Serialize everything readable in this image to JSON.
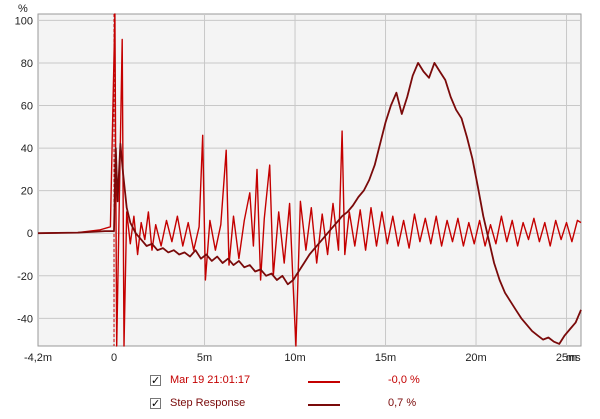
{
  "chart_data": {
    "type": "line",
    "xlabel": "",
    "ylabel": "%",
    "x_unit_label": "ms",
    "xlim": [
      -4.2,
      25.8
    ],
    "ylim": [
      -53,
      103
    ],
    "grid": true,
    "x_ticks": [
      {
        "value": -4.2,
        "label": "-4,2m"
      },
      {
        "value": 0,
        "label": "0"
      },
      {
        "value": 5,
        "label": "5m"
      },
      {
        "value": 10,
        "label": "10m"
      },
      {
        "value": 15,
        "label": "15m"
      },
      {
        "value": 20,
        "label": "20m"
      },
      {
        "value": 25,
        "label": "25m"
      }
    ],
    "y_ticks": [
      {
        "value": 100,
        "label": "100"
      },
      {
        "value": 80,
        "label": "80"
      },
      {
        "value": 60,
        "label": "60"
      },
      {
        "value": 40,
        "label": "40"
      },
      {
        "value": 20,
        "label": "20"
      },
      {
        "value": 0,
        "label": "0"
      },
      {
        "value": -20,
        "label": "-20"
      },
      {
        "value": -40,
        "label": "-40"
      }
    ],
    "marker_x": 0,
    "series": [
      {
        "name": "Mar 19 21:01:17",
        "legend_value": "-0,0 %",
        "color": "#c40000",
        "points": [
          [
            -4.2,
            0
          ],
          [
            -2.0,
            0.3
          ],
          [
            -0.8,
            1.5
          ],
          [
            -0.2,
            3
          ],
          [
            0.05,
            103
          ],
          [
            0.15,
            -53
          ],
          [
            0.3,
            20
          ],
          [
            0.45,
            91
          ],
          [
            0.55,
            -53
          ],
          [
            0.7,
            10
          ],
          [
            0.9,
            -5
          ],
          [
            1.1,
            8
          ],
          [
            1.3,
            -10
          ],
          [
            1.5,
            5
          ],
          [
            1.7,
            -3
          ],
          [
            1.9,
            10
          ],
          [
            2.1,
            -8
          ],
          [
            2.3,
            4
          ],
          [
            2.6,
            -6
          ],
          [
            2.9,
            6
          ],
          [
            3.2,
            -4
          ],
          [
            3.5,
            8
          ],
          [
            3.8,
            -6
          ],
          [
            4.1,
            5
          ],
          [
            4.4,
            -8
          ],
          [
            4.7,
            3
          ],
          [
            4.9,
            46
          ],
          [
            5.05,
            -22
          ],
          [
            5.3,
            6
          ],
          [
            5.6,
            -8
          ],
          [
            5.9,
            4
          ],
          [
            6.2,
            39
          ],
          [
            6.35,
            -15
          ],
          [
            6.6,
            8
          ],
          [
            6.9,
            -12
          ],
          [
            7.2,
            6
          ],
          [
            7.5,
            19
          ],
          [
            7.7,
            -6
          ],
          [
            7.9,
            30
          ],
          [
            8.1,
            -22
          ],
          [
            8.3,
            7
          ],
          [
            8.6,
            32
          ],
          [
            8.8,
            -20
          ],
          [
            9.1,
            10
          ],
          [
            9.4,
            -14
          ],
          [
            9.7,
            14
          ],
          [
            9.9,
            -25
          ],
          [
            10.05,
            -53
          ],
          [
            10.3,
            15
          ],
          [
            10.6,
            -8
          ],
          [
            10.9,
            12
          ],
          [
            11.2,
            -14
          ],
          [
            11.5,
            9
          ],
          [
            11.8,
            -10
          ],
          [
            12.1,
            14
          ],
          [
            12.4,
            -8
          ],
          [
            12.6,
            48
          ],
          [
            12.75,
            -10
          ],
          [
            13.0,
            10
          ],
          [
            13.3,
            -6
          ],
          [
            13.6,
            11
          ],
          [
            13.9,
            -8
          ],
          [
            14.2,
            12
          ],
          [
            14.5,
            -6
          ],
          [
            14.8,
            10
          ],
          [
            15.1,
            -5
          ],
          [
            15.4,
            8
          ],
          [
            15.7,
            -6
          ],
          [
            16.0,
            6
          ],
          [
            16.3,
            -7
          ],
          [
            16.6,
            9
          ],
          [
            16.9,
            -4
          ],
          [
            17.2,
            7
          ],
          [
            17.5,
            -5
          ],
          [
            17.8,
            8
          ],
          [
            18.1,
            -6
          ],
          [
            18.4,
            6
          ],
          [
            18.7,
            -4
          ],
          [
            19.0,
            7
          ],
          [
            19.3,
            -6
          ],
          [
            19.6,
            5
          ],
          [
            19.9,
            -5
          ],
          [
            20.2,
            6
          ],
          [
            20.5,
            -6
          ],
          [
            20.8,
            4
          ],
          [
            21.1,
            -5
          ],
          [
            21.4,
            8
          ],
          [
            21.7,
            -4
          ],
          [
            22.0,
            6
          ],
          [
            22.3,
            -6
          ],
          [
            22.6,
            5
          ],
          [
            22.9,
            -3
          ],
          [
            23.2,
            7
          ],
          [
            23.5,
            -4
          ],
          [
            23.8,
            5
          ],
          [
            24.1,
            -6
          ],
          [
            24.4,
            6
          ],
          [
            24.7,
            -3
          ],
          [
            25.0,
            5
          ],
          [
            25.3,
            -4
          ],
          [
            25.6,
            6
          ],
          [
            25.8,
            5
          ]
        ]
      },
      {
        "name": "Step Response",
        "legend_value": "0,7 %",
        "color": "#7a0a0a",
        "points": [
          [
            -4.2,
            0
          ],
          [
            -2.0,
            0.3
          ],
          [
            -0.5,
            1
          ],
          [
            0.0,
            1
          ],
          [
            0.1,
            40
          ],
          [
            0.2,
            15
          ],
          [
            0.35,
            42
          ],
          [
            0.5,
            28
          ],
          [
            0.7,
            12
          ],
          [
            0.9,
            5
          ],
          [
            1.2,
            0
          ],
          [
            1.5,
            -3
          ],
          [
            1.8,
            -6
          ],
          [
            2.1,
            -5
          ],
          [
            2.4,
            -8
          ],
          [
            2.7,
            -7
          ],
          [
            3.0,
            -9
          ],
          [
            3.3,
            -8
          ],
          [
            3.6,
            -10
          ],
          [
            3.9,
            -9
          ],
          [
            4.2,
            -11
          ],
          [
            4.5,
            -8
          ],
          [
            4.8,
            -12
          ],
          [
            5.1,
            -10
          ],
          [
            5.4,
            -13
          ],
          [
            5.7,
            -11
          ],
          [
            6.0,
            -14
          ],
          [
            6.3,
            -12
          ],
          [
            6.6,
            -15
          ],
          [
            6.9,
            -13
          ],
          [
            7.2,
            -16
          ],
          [
            7.5,
            -15
          ],
          [
            7.8,
            -18
          ],
          [
            8.1,
            -17
          ],
          [
            8.4,
            -20
          ],
          [
            8.7,
            -19
          ],
          [
            9.0,
            -22
          ],
          [
            9.3,
            -20
          ],
          [
            9.6,
            -24
          ],
          [
            9.9,
            -22
          ],
          [
            10.2,
            -18
          ],
          [
            10.5,
            -14
          ],
          [
            10.8,
            -10
          ],
          [
            11.1,
            -7
          ],
          [
            11.4,
            -4
          ],
          [
            11.7,
            -1
          ],
          [
            12.0,
            2
          ],
          [
            12.3,
            5
          ],
          [
            12.6,
            8
          ],
          [
            12.9,
            10
          ],
          [
            13.2,
            13
          ],
          [
            13.5,
            17
          ],
          [
            13.8,
            20
          ],
          [
            14.1,
            25
          ],
          [
            14.4,
            32
          ],
          [
            14.7,
            42
          ],
          [
            15.0,
            52
          ],
          [
            15.3,
            60
          ],
          [
            15.6,
            66
          ],
          [
            15.9,
            56
          ],
          [
            16.2,
            64
          ],
          [
            16.5,
            74
          ],
          [
            16.8,
            80
          ],
          [
            17.1,
            76
          ],
          [
            17.4,
            73
          ],
          [
            17.7,
            80
          ],
          [
            18.0,
            76
          ],
          [
            18.3,
            72
          ],
          [
            18.6,
            64
          ],
          [
            18.9,
            58
          ],
          [
            19.2,
            54
          ],
          [
            19.5,
            45
          ],
          [
            19.8,
            35
          ],
          [
            20.1,
            22
          ],
          [
            20.4,
            8
          ],
          [
            20.7,
            -3
          ],
          [
            21.0,
            -14
          ],
          [
            21.3,
            -22
          ],
          [
            21.6,
            -28
          ],
          [
            21.9,
            -32
          ],
          [
            22.2,
            -36
          ],
          [
            22.5,
            -40
          ],
          [
            22.8,
            -43
          ],
          [
            23.1,
            -46
          ],
          [
            23.4,
            -48
          ],
          [
            23.7,
            -50
          ],
          [
            24.0,
            -49
          ],
          [
            24.3,
            -51
          ],
          [
            24.6,
            -52
          ],
          [
            24.9,
            -48
          ],
          [
            25.2,
            -45
          ],
          [
            25.5,
            -42
          ],
          [
            25.8,
            -36
          ]
        ]
      }
    ]
  }
}
